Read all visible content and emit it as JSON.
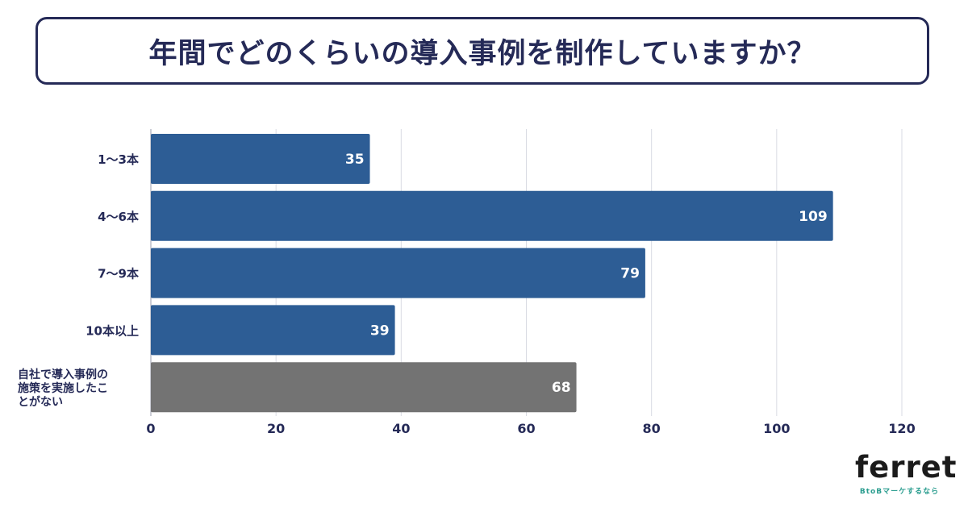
{
  "title": "年間でどのくらいの導入事例を制作していますか？",
  "brand": {
    "name": "ferret",
    "tagline": "BtoBマーケするなら"
  },
  "colors": {
    "primary_bar": "#2d5d95",
    "other_bar": "#737373",
    "text": "#252a57",
    "grid": "#d9dbe3"
  },
  "chart_data": {
    "type": "bar",
    "orientation": "horizontal",
    "categories": [
      "1〜3本",
      "4〜6本",
      "7〜9本",
      "10本以上",
      "自社で導入事例の施策を実施したことがない"
    ],
    "category_lines": [
      [
        "1〜3本"
      ],
      [
        "4〜6本"
      ],
      [
        "7〜9本"
      ],
      [
        "10本以上"
      ],
      [
        "自社で導入事例の",
        "施策を実施したこ",
        "とがない"
      ]
    ],
    "values": [
      35,
      109,
      79,
      39,
      68
    ],
    "bar_colors": [
      "#2d5d95",
      "#2d5d95",
      "#2d5d95",
      "#2d5d95",
      "#737373"
    ],
    "data_labels": [
      "35",
      "109",
      "79",
      "39",
      "68"
    ],
    "xlim": [
      0,
      120
    ],
    "xticks": [
      0,
      20,
      40,
      60,
      80,
      100,
      120
    ],
    "xlabel": "",
    "ylabel": "",
    "grid": true,
    "legend": "none"
  }
}
